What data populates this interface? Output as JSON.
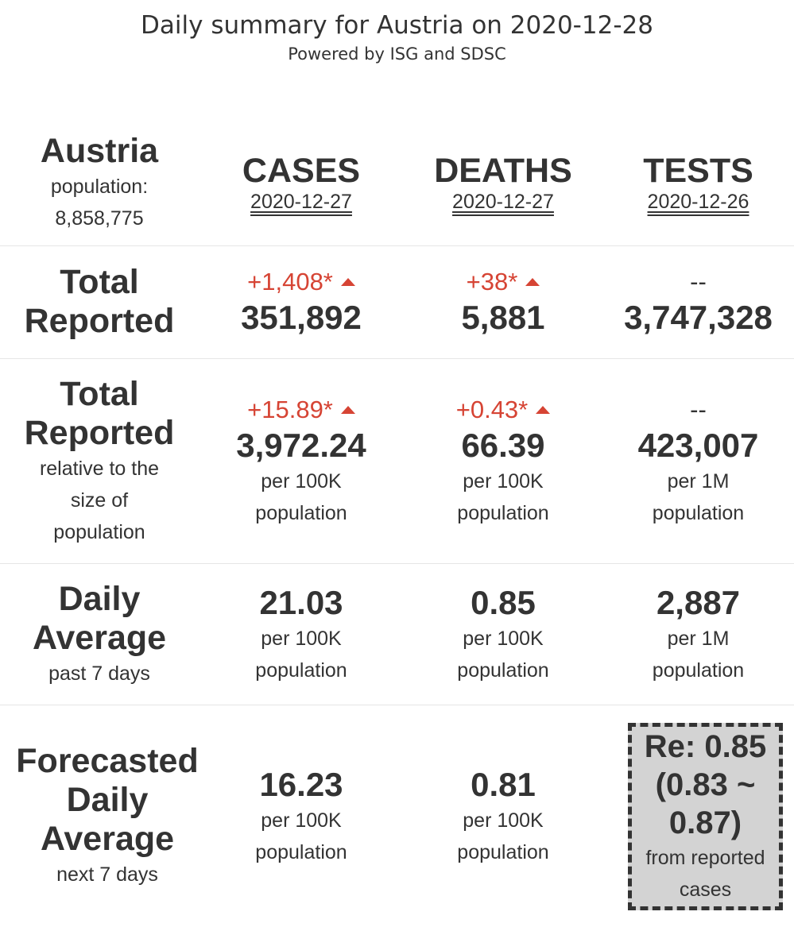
{
  "header": {
    "title": "Daily summary for Austria on 2020-12-28",
    "subtitle": "Powered by ISG and SDSC"
  },
  "country": {
    "name": "Austria",
    "population_label": "population:",
    "population_value": "8,858,775"
  },
  "columns": {
    "cases": {
      "label": "CASES",
      "date": "2020-12-27"
    },
    "deaths": {
      "label": "DEATHS",
      "date": "2020-12-27"
    },
    "tests": {
      "label": "TESTS",
      "date": "2020-12-26"
    }
  },
  "total_reported": {
    "label_line1": "Total",
    "label_line2": "Reported",
    "cases": {
      "delta": "+1,408*",
      "value": "351,892"
    },
    "deaths": {
      "delta": "+38*",
      "value": "5,881"
    },
    "tests": {
      "delta": "--",
      "value": "3,747,328"
    }
  },
  "relative": {
    "label_line1": "Total",
    "label_line2": "Reported",
    "note_line1": "relative to the",
    "note_line2": "size of",
    "note_line3": "population",
    "cases": {
      "delta": "+15.89*",
      "value": "3,972.24",
      "unit1": "per 100K",
      "unit2": "population"
    },
    "deaths": {
      "delta": "+0.43*",
      "value": "66.39",
      "unit1": "per 100K",
      "unit2": "population"
    },
    "tests": {
      "delta": "--",
      "value": "423,007",
      "unit1": "per 1M",
      "unit2": "population"
    }
  },
  "daily_average": {
    "label_line1": "Daily",
    "label_line2": "Average",
    "note": "past 7 days",
    "cases": {
      "value": "21.03",
      "unit1": "per 100K",
      "unit2": "population"
    },
    "deaths": {
      "value": "0.85",
      "unit1": "per 100K",
      "unit2": "population"
    },
    "tests": {
      "value": "2,887",
      "unit1": "per 1M",
      "unit2": "population"
    }
  },
  "forecast": {
    "label_line1": "Forecasted",
    "label_line2": "Daily",
    "label_line3": "Average",
    "note": "next 7 days",
    "cases": {
      "value": "16.23",
      "unit1": "per 100K",
      "unit2": "population"
    },
    "deaths": {
      "value": "0.81",
      "unit1": "per 100K",
      "unit2": "population"
    },
    "re": {
      "line1": "Re: 0.85",
      "line2": "(0.83 ~",
      "line3": "0.87)",
      "note1": "from reported",
      "note2": "cases"
    }
  },
  "colors": {
    "text": "#333333",
    "increase": "#d64434",
    "re_box_bg": "#d3d3d3",
    "divider": "#e6e6e6"
  }
}
